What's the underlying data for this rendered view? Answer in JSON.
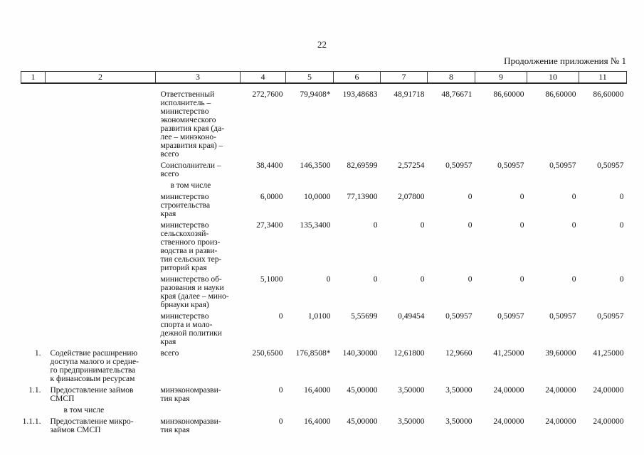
{
  "page": {
    "number": "22",
    "continuation": "Продолжение приложения № 1"
  },
  "table": {
    "column_numbers": [
      "1",
      "2",
      "3",
      "4",
      "5",
      "6",
      "7",
      "8",
      "9",
      "10",
      "11"
    ],
    "rows": [
      {
        "num": "",
        "name": "",
        "executor": "Ответственный\nисполнитель –\nминистерство\nэкономического\nразвития края (да-\nлее – минэконо-\nмразвития края) –\nвсего",
        "values": [
          "272,7600",
          "79,9408*",
          "193,48683",
          "48,91718",
          "48,76671",
          "86,60000",
          "86,60000",
          "86,60000"
        ]
      },
      {
        "num": "",
        "name": "",
        "executor": "Соисполнители –\nвсего",
        "values": [
          "38,4400",
          "146,3500",
          "82,69599",
          "2,57254",
          "0,50957",
          "0,50957",
          "0,50957",
          "0,50957"
        ]
      },
      {
        "type": "subheader-col3",
        "label": "в том числе"
      },
      {
        "num": "",
        "name": "",
        "executor": "министерство\nстроительства\nкрая",
        "values": [
          "6,0000",
          "10,0000",
          "77,13900",
          "2,07800",
          "0",
          "0",
          "0",
          "0"
        ]
      },
      {
        "num": "",
        "name": "",
        "executor": "министерство\nсельскохозяй-\nственного произ-\nводства и разви-\nтия сельских тер-\nриторий края",
        "values": [
          "27,3400",
          "135,3400",
          "0",
          "0",
          "0",
          "0",
          "0",
          "0"
        ]
      },
      {
        "num": "",
        "name": "",
        "executor": "министерство об-\nразования и науки\nкрая (далее – мино-\nбрнауки края)",
        "values": [
          "5,1000",
          "0",
          "0",
          "0",
          "0",
          "0",
          "0",
          "0"
        ]
      },
      {
        "num": "",
        "name": "",
        "executor": "министерство\nспорта и моло-\nдежной политики\nкрая",
        "values": [
          "0",
          "1,0100",
          "5,55699",
          "0,49454",
          "0,50957",
          "0,50957",
          "0,50957",
          "0,50957"
        ]
      },
      {
        "num": "1.",
        "name": "Содействие расширению\nдоступа малого и средне-\nго предпринимательства\nк финансовым ресурсам",
        "executor": "всего",
        "values": [
          "250,6500",
          "176,8508*",
          "140,30000",
          "12,61800",
          "12,9660",
          "41,25000",
          "39,60000",
          "41,25000"
        ]
      },
      {
        "num": "1.1.",
        "name": "Предоставление займов\nСМСП",
        "executor": "минэкономразви-\nтия края",
        "values": [
          "0",
          "16,4000",
          "45,00000",
          "3,50000",
          "3,50000",
          "24,00000",
          "24,00000",
          "24,00000"
        ]
      },
      {
        "type": "subheader-col2",
        "label": "в том числе"
      },
      {
        "num": "1.1.1.",
        "name": "Предоставление микро-\nзаймов СМСП",
        "executor": "минэкономразви-\nтия края",
        "values": [
          "0",
          "16,4000",
          "45,00000",
          "3,50000",
          "3,50000",
          "24,00000",
          "24,00000",
          "24,00000"
        ]
      }
    ]
  }
}
